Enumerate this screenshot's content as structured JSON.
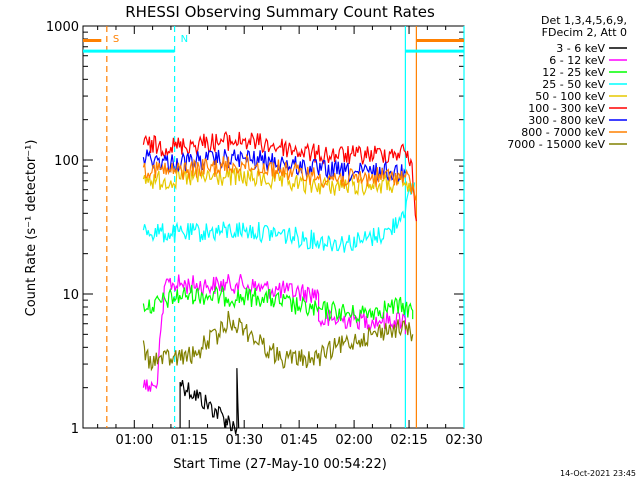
{
  "chart_data": {
    "type": "line",
    "title": "RHESSI Observing Summary Count Rates",
    "xlabel": "Start Time (27-May-10 00:54:22)",
    "ylabel": "Count Rate (s⁻¹ detector⁻¹)",
    "x_unit": "minutes after 01:00",
    "xlim": [
      -14,
      90
    ],
    "ylim": [
      1,
      1000
    ],
    "yscale": "log",
    "x_ticks": [
      {
        "x": 0,
        "label": "01:00"
      },
      {
        "x": 15,
        "label": "01:15"
      },
      {
        "x": 30,
        "label": "01:30"
      },
      {
        "x": 45,
        "label": "01:45"
      },
      {
        "x": 60,
        "label": "02:00"
      },
      {
        "x": 75,
        "label": "02:15"
      },
      {
        "x": 90,
        "label": "02:30"
      }
    ],
    "y_ticks": [
      {
        "y": 1,
        "label": "1"
      },
      {
        "y": 10,
        "label": "10"
      },
      {
        "y": 100,
        "label": "100"
      },
      {
        "y": 1000,
        "label": "1000"
      }
    ],
    "legend": {
      "placement": "right",
      "header": [
        "Det 1,3,4,5,6,9,",
        "FDecim 2, Att 0"
      ],
      "entries": [
        {
          "label": "3 - 6 keV",
          "color": "#000000"
        },
        {
          "label": "6 - 12 keV",
          "color": "#ff00ff"
        },
        {
          "label": "12 - 25 keV",
          "color": "#00ff00"
        },
        {
          "label": "25 - 50 keV",
          "color": "#00ffff"
        },
        {
          "label": "50 - 100 keV",
          "color": "#e6c800"
        },
        {
          "label": "100 - 300 keV",
          "color": "#ff0000"
        },
        {
          "label": "300 - 800 keV",
          "color": "#0000ff"
        },
        {
          "label": "800 - 7000 keV",
          "color": "#ff8000"
        },
        {
          "label": "7000 - 15000 keV",
          "color": "#808000"
        }
      ]
    },
    "series": [
      {
        "color": "#000000",
        "points": [
          [
            12.5,
            1
          ],
          [
            12.5,
            2.2
          ],
          [
            28,
            1
          ],
          [
            28,
            2.8
          ],
          [
            28.5,
            1
          ]
        ]
      },
      {
        "color": "#ff00ff",
        "points": [
          [
            2.5,
            2
          ],
          [
            6,
            2
          ],
          [
            8.5,
            12
          ],
          [
            20,
            11.5
          ],
          [
            28,
            12
          ],
          [
            35,
            11
          ],
          [
            42,
            10.5
          ],
          [
            50.3,
            10
          ],
          [
            50.3,
            6.3
          ],
          [
            60,
            6.5
          ],
          [
            67,
            6.3
          ],
          [
            74,
            6.5
          ],
          [
            74,
            5
          ]
        ]
      },
      {
        "color": "#00ff00",
        "points": [
          [
            2.5,
            8.5
          ],
          [
            5,
            8
          ],
          [
            8.5,
            9
          ],
          [
            15,
            10
          ],
          [
            25,
            9.5
          ],
          [
            35,
            9.5
          ],
          [
            45,
            8
          ],
          [
            50,
            7.5
          ],
          [
            55,
            7.5
          ],
          [
            60,
            7
          ],
          [
            65,
            7.5
          ],
          [
            70,
            8
          ],
          [
            74,
            8
          ],
          [
            76,
            7.5
          ],
          [
            76,
            6.5
          ]
        ]
      },
      {
        "color": "#00ffff",
        "points": [
          [
            2.5,
            30
          ],
          [
            10,
            28
          ],
          [
            20,
            29
          ],
          [
            30,
            30
          ],
          [
            40,
            28
          ],
          [
            50,
            25
          ],
          [
            57,
            24
          ],
          [
            62,
            25
          ],
          [
            66,
            27
          ],
          [
            70,
            30
          ],
          [
            73,
            40
          ],
          [
            75.5,
            55
          ],
          [
            76.5,
            68
          ]
        ]
      },
      {
        "color": "#e6c800",
        "points": [
          [
            2.5,
            72
          ],
          [
            8,
            70
          ],
          [
            15,
            73
          ],
          [
            25,
            75
          ],
          [
            35,
            72
          ],
          [
            45,
            66
          ],
          [
            55,
            64
          ],
          [
            65,
            65
          ],
          [
            72,
            66
          ],
          [
            74,
            65
          ],
          [
            76,
            60
          ]
        ]
      },
      {
        "color": "#ff0000",
        "points": [
          [
            2.5,
            130
          ],
          [
            10,
            125
          ],
          [
            20,
            135
          ],
          [
            30,
            140
          ],
          [
            40,
            125
          ],
          [
            50,
            110
          ],
          [
            60,
            108
          ],
          [
            70,
            112
          ],
          [
            74,
            115
          ],
          [
            75.5,
            100
          ],
          [
            77,
            35
          ]
        ]
      },
      {
        "color": "#0000ff",
        "points": [
          [
            2.5,
            105
          ],
          [
            10,
            95
          ],
          [
            20,
            100
          ],
          [
            30,
            103
          ],
          [
            40,
            95
          ],
          [
            50,
            85
          ],
          [
            60,
            80
          ],
          [
            70,
            82
          ],
          [
            74,
            80
          ]
        ]
      },
      {
        "color": "#ff8000",
        "points": [
          [
            2.5,
            88
          ],
          [
            10,
            82
          ],
          [
            20,
            88
          ],
          [
            30,
            92
          ],
          [
            40,
            85
          ],
          [
            50,
            75
          ],
          [
            60,
            72
          ],
          [
            70,
            76
          ],
          [
            74,
            75
          ],
          [
            77,
            55
          ]
        ]
      },
      {
        "color": "#808000",
        "points": [
          [
            2.5,
            4.5
          ],
          [
            3,
            3.2
          ],
          [
            10,
            3.3
          ],
          [
            17,
            3.5
          ],
          [
            20,
            4.5
          ],
          [
            23,
            5
          ],
          [
            26,
            6.5
          ],
          [
            30,
            5.5
          ],
          [
            35,
            4.2
          ],
          [
            40,
            3.3
          ],
          [
            50,
            3.3
          ],
          [
            55,
            4
          ],
          [
            60,
            4.5
          ],
          [
            65,
            5
          ],
          [
            70,
            5.5
          ],
          [
            74,
            5.5
          ],
          [
            76,
            5
          ]
        ]
      }
    ],
    "annotations": [
      {
        "text": "S",
        "x": -7.5,
        "color": "#ff8000"
      },
      {
        "text": "N",
        "x": 11,
        "color": "#00ffff"
      }
    ],
    "state_lines": [
      {
        "color": "#ff8000",
        "dashed": true,
        "x": -7.5
      },
      {
        "color": "#00ffff",
        "dashed": true,
        "x": 11
      },
      {
        "color": "#00ffff",
        "dashed": false,
        "x": 74
      },
      {
        "color": "#ff8000",
        "dashed": false,
        "x": 77
      },
      {
        "color": "#00ffff",
        "dashed": false,
        "x": 90
      }
    ],
    "state_segments": [
      {
        "color": "#00ffff",
        "x1": -14,
        "x2": 11,
        "y": 650
      },
      {
        "color": "#ff8000",
        "x1": -14,
        "x2": -9,
        "y": 780
      },
      {
        "color": "#00ffff",
        "x1": 74,
        "x2": 90,
        "y": 650
      },
      {
        "color": "#ff8000",
        "x1": 77,
        "x2": 90,
        "y": 780
      }
    ]
  },
  "footer": {
    "timestamp": "14-Oct-2021 23:45"
  }
}
